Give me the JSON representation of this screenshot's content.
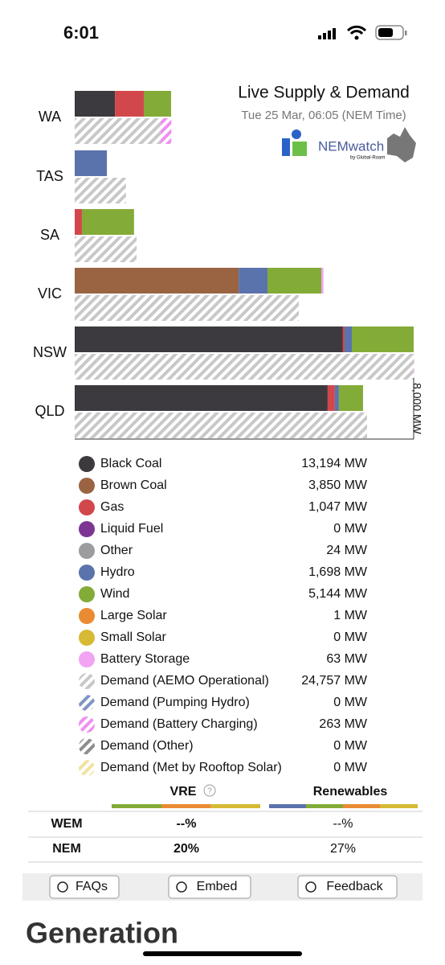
{
  "status_bar": {
    "time": "6:01"
  },
  "header": {
    "title": "Live Supply & Demand",
    "date": "Tue 25 Mar, 06:05 (NEM Time)",
    "logo": "NEMwatch",
    "logo_sub": "by Global-Roam"
  },
  "chart_data": {
    "type": "bar",
    "orientation": "horizontal",
    "categories": [
      "WA",
      "TAS",
      "SA",
      "VIC",
      "NSW",
      "QLD"
    ],
    "xlim": [
      0,
      8000
    ],
    "xticks": [
      {
        "value": 8000,
        "label": "8,000 MW"
      }
    ],
    "series": [
      {
        "name": "Black Coal",
        "color": "#3d3a3f",
        "stack": "supply",
        "total": "13,194 MW",
        "values": [
          950,
          0,
          0,
          0,
          6330,
          5970
        ]
      },
      {
        "name": "Brown Coal",
        "color": "#9a6443",
        "stack": "supply",
        "total": "3,850 MW",
        "values": [
          0,
          0,
          0,
          3870,
          0,
          0
        ]
      },
      {
        "name": "Gas",
        "color": "#d2474b",
        "stack": "supply",
        "total": "1,047 MW",
        "values": [
          680,
          0,
          170,
          0,
          40,
          170
        ]
      },
      {
        "name": "Liquid Fuel",
        "color": "#7d3592",
        "stack": "supply",
        "total": "0 MW",
        "values": [
          0,
          0,
          0,
          0,
          0,
          0
        ]
      },
      {
        "name": "Other",
        "color": "#9c9c9e",
        "stack": "supply",
        "total": "24 MW",
        "values": [
          0,
          0,
          0,
          0,
          0,
          0
        ]
      },
      {
        "name": "Hydro",
        "color": "#5b73ad",
        "stack": "supply",
        "total": "1,698 MW",
        "values": [
          0,
          760,
          0,
          680,
          170,
          95
        ]
      },
      {
        "name": "Wind",
        "color": "#83ab37",
        "stack": "supply",
        "total": "5,144 MW",
        "values": [
          645,
          0,
          1230,
          1270,
          1460,
          570
        ]
      },
      {
        "name": "Large Solar",
        "color": "#ea8b33",
        "stack": "supply",
        "total": "1 MW",
        "values": [
          0,
          0,
          0,
          0,
          0,
          0
        ]
      },
      {
        "name": "Small Solar",
        "color": "#d6b935",
        "stack": "supply",
        "total": "0 MW",
        "values": [
          0,
          0,
          0,
          0,
          0,
          0
        ]
      },
      {
        "name": "Battery Storage",
        "color": "#f2a3f2",
        "stack": "supply",
        "total": "63 MW",
        "values": [
          0,
          0,
          0,
          50,
          0,
          0
        ]
      },
      {
        "name": "Demand (AEMO Operational)",
        "color": "#c8c8c8",
        "stack": "demand",
        "total": "24,757 MW",
        "values": [
          2030,
          1210,
          1460,
          5290,
          8000,
          6900
        ]
      },
      {
        "name": "Demand (Pumping Hydro)",
        "color": "#7f95c4",
        "stack": "demand",
        "total": "0 MW",
        "values": [
          0,
          0,
          0,
          0,
          0,
          0
        ]
      },
      {
        "name": "Demand (Battery Charging)",
        "color": "#f08ef0",
        "stack": "demand",
        "total": "263 MW",
        "values": [
          250,
          0,
          0,
          0,
          10,
          0
        ]
      },
      {
        "name": "Demand (Other)",
        "color": "#8c8c8c",
        "stack": "demand",
        "total": "0 MW",
        "values": [
          0,
          0,
          0,
          0,
          0,
          0
        ]
      },
      {
        "name": "Demand (Met by Rooftop Solar)",
        "color": "#f3e2a0",
        "stack": "demand",
        "total": "0 MW",
        "values": [
          0,
          0,
          0,
          0,
          0,
          0
        ]
      }
    ]
  },
  "table": {
    "headers": [
      "VRE",
      "Renewables"
    ],
    "rows": [
      [
        "WEM",
        "--%",
        "--%"
      ],
      [
        "NEM",
        "20%",
        "27%"
      ]
    ]
  },
  "buttons": [
    "FAQs",
    "Embed",
    "Feedback"
  ],
  "section": {
    "title": "Generation"
  }
}
